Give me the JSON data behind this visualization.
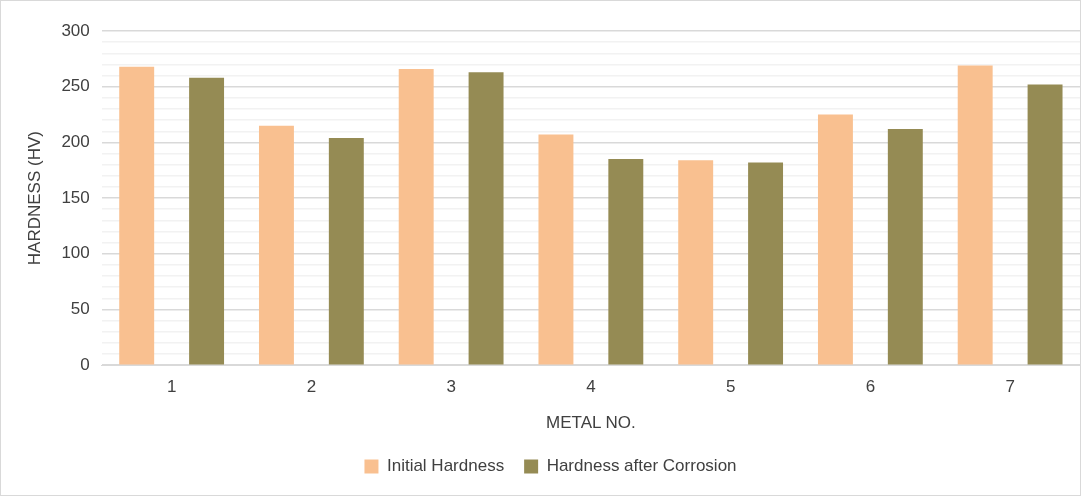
{
  "chart_data": {
    "type": "bar",
    "xlabel": "METAL NO.",
    "ylabel": "HARDNESS (HV)",
    "categories": [
      "1",
      "2",
      "3",
      "4",
      "5",
      "6",
      "7"
    ],
    "series": [
      {
        "name": "Initial Hardness",
        "color": "#f9c090",
        "values": [
          268,
          215,
          266,
          207,
          184,
          225,
          269
        ]
      },
      {
        "name": "Hardness after Corrosion",
        "color": "#958b54",
        "values": [
          258,
          204,
          263,
          185,
          182,
          212,
          252
        ]
      }
    ],
    "ylim": [
      0,
      300
    ],
    "yticks": [
      0,
      {
        "value": 10,
        "label": null
      },
      {
        "value": 20,
        "label": null
      },
      {
        "value": 30,
        "label": null
      },
      {
        "value": 40,
        "label": null
      },
      50,
      {
        "value": 60,
        "label": null
      },
      {
        "value": 70,
        "label": null
      },
      {
        "value": 80,
        "label": null
      },
      {
        "value": 90,
        "label": null
      },
      100,
      {
        "value": 110,
        "label": null
      },
      {
        "value": 120,
        "label": null
      },
      {
        "value": 130,
        "label": null
      },
      {
        "value": 140,
        "label": null
      },
      150,
      {
        "value": 160,
        "label": null
      },
      {
        "value": 170,
        "label": null
      },
      {
        "value": 180,
        "label": null
      },
      {
        "value": 190,
        "label": null
      },
      200,
      {
        "value": 210,
        "label": null
      },
      {
        "value": 220,
        "label": null
      },
      {
        "value": 230,
        "label": null
      },
      {
        "value": 240,
        "label": null
      },
      250,
      {
        "value": 260,
        "label": null
      },
      {
        "value": 270,
        "label": null
      },
      {
        "value": 280,
        "label": null
      },
      {
        "value": 290,
        "label": null
      },
      300
    ],
    "grid": "y",
    "legend": "bottom"
  }
}
